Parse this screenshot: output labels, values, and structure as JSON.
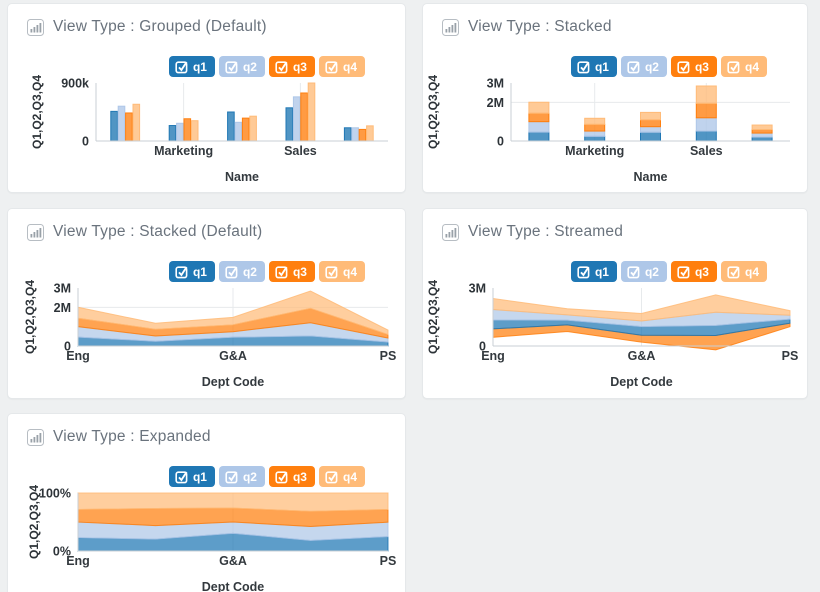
{
  "colors": {
    "q1": "#1f77b4",
    "q2": "#aec7e8",
    "q3": "#ff7f0e",
    "q4": "#ffbb78",
    "axis": "#c9cfd4",
    "grid": "#e7eaec",
    "title_text": "#6a737d",
    "card_bg": "#ffffff",
    "page_bg": "#eef0f1"
  },
  "chart_data": {
    "type": "multi-panel",
    "categories": [
      "Eng",
      "Marketing",
      "G&A",
      "Sales",
      "PS"
    ],
    "series": [
      {
        "name": "q1",
        "color": "#1f77b4",
        "checked": true,
        "values_k": [
          460,
          240,
          450,
          515,
          205
        ]
      },
      {
        "name": "q2",
        "color": "#aec7e8",
        "checked": true,
        "values_k": [
          540,
          275,
          290,
          685,
          205
        ]
      },
      {
        "name": "q3",
        "color": "#ff7f0e",
        "checked": true,
        "values_k": [
          435,
          345,
          355,
          745,
          180
        ]
      },
      {
        "name": "q4",
        "color": "#ffbb78",
        "checked": true,
        "values_k": [
          570,
          315,
          385,
          900,
          235
        ]
      }
    ],
    "legend_position": "top-right",
    "charts": [
      {
        "key": "grouped",
        "title": "View Type : Grouped (Default)",
        "type": "bar",
        "mode": "grouped",
        "xlabel": "Name",
        "ylabel": "Q1,Q2,Q3,Q4",
        "ymax": 900,
        "unit": "k",
        "yticks": [
          {
            "value": 900,
            "label": "900k",
            "grid": false
          },
          {
            "value": 0,
            "label": "0",
            "grid": false
          }
        ],
        "xticks": [
          {
            "index": 1,
            "label": "Marketing"
          },
          {
            "index": 3,
            "label": "Sales"
          }
        ]
      },
      {
        "key": "stacked-bar",
        "title": "View Type : Stacked",
        "type": "bar",
        "mode": "stacked",
        "xlabel": "Name",
        "ylabel": "Q1,Q2,Q3,Q4",
        "ymax": 3000,
        "unit": "k",
        "yticks": [
          {
            "value": 3000,
            "label": "3M",
            "grid": false
          },
          {
            "value": 2000,
            "label": "2M",
            "grid": true
          },
          {
            "value": 0,
            "label": "0",
            "grid": false
          }
        ],
        "xticks": [
          {
            "index": 1,
            "label": "Marketing"
          },
          {
            "index": 3,
            "label": "Sales"
          }
        ]
      },
      {
        "key": "stacked-area",
        "title": "View Type : Stacked (Default)",
        "type": "area",
        "mode": "stacked",
        "xlabel": "Dept Code",
        "ylabel": "Q1,Q2,Q3,Q4",
        "ymax": 3000,
        "unit": "k",
        "yticks": [
          {
            "value": 3000,
            "label": "3M",
            "grid": false
          },
          {
            "value": 2000,
            "label": "2M",
            "grid": true
          },
          {
            "value": 0,
            "label": "0",
            "grid": false
          }
        ],
        "xticks": [
          {
            "index": 0,
            "label": "Eng"
          },
          {
            "index": 2,
            "label": "G&A"
          },
          {
            "index": 4,
            "label": "PS"
          }
        ]
      },
      {
        "key": "streamed",
        "title": "View Type : Streamed",
        "type": "area",
        "mode": "stream",
        "xlabel": "Dept Code",
        "ylabel": "Q1,Q2,Q3,Q4",
        "ymax": 3000,
        "unit": "k",
        "stream_order": [
          "q3",
          "q1",
          "q2",
          "q4"
        ],
        "stream_baseline_k": [
          450,
          750,
          200,
          -200,
          1000
        ],
        "yticks": [
          {
            "value": 3000,
            "label": "3M",
            "grid": false
          },
          {
            "value": 0,
            "label": "0",
            "grid": false
          }
        ],
        "xticks": [
          {
            "index": 0,
            "label": "Eng"
          },
          {
            "index": 2,
            "label": "G&A"
          },
          {
            "index": 4,
            "label": "PS"
          }
        ]
      },
      {
        "key": "expanded",
        "title": "View Type : Expanded",
        "type": "area",
        "mode": "expanded",
        "xlabel": "Dept Code",
        "ylabel": "Q1,Q2,Q3,Q4",
        "ymax": 100,
        "unit": "%",
        "yticks": [
          {
            "value": 100,
            "label": "100%",
            "grid": false
          },
          {
            "value": 0,
            "label": "0%",
            "grid": false
          }
        ],
        "xticks": [
          {
            "index": 0,
            "label": "Eng"
          },
          {
            "index": 2,
            "label": "G&A"
          },
          {
            "index": 4,
            "label": "PS"
          }
        ]
      }
    ]
  }
}
